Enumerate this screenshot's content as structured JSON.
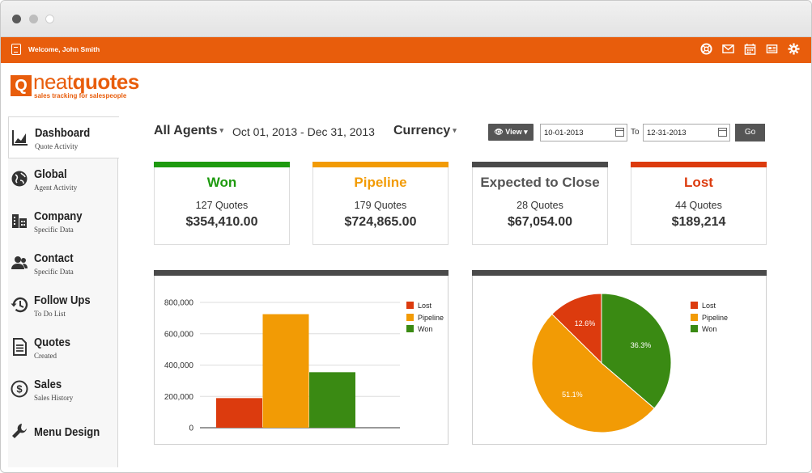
{
  "app": {
    "welcome_text": "Welcome, John Smith",
    "brand_part1": "neat",
    "brand_part2": "quotes",
    "logo_letter": "Q",
    "tagline": "sales tracking for salespeople",
    "accent_color": "#e85d0c",
    "toolbar_icons": [
      "support-icon",
      "mail-icon",
      "calendar-icon",
      "newspaper-icon",
      "settings-icon"
    ]
  },
  "sidebar": {
    "items": [
      {
        "title": "Dashboard",
        "subtitle": "Quote Activity",
        "icon": "chart-icon",
        "active": true
      },
      {
        "title": "Global",
        "subtitle": "Agent Activity",
        "icon": "globe-icon"
      },
      {
        "title": "Company",
        "subtitle": "Specific Data",
        "icon": "building-icon"
      },
      {
        "title": "Contact",
        "subtitle": "Specific Data",
        "icon": "people-icon"
      },
      {
        "title": "Follow Ups",
        "subtitle": "To Do List",
        "icon": "history-icon"
      },
      {
        "title": "Quotes",
        "subtitle": "Created",
        "icon": "document-icon"
      },
      {
        "title": "Sales",
        "subtitle": "Sales History",
        "icon": "dollar-icon"
      },
      {
        "title": "Menu Design",
        "subtitle": "",
        "icon": "wrench-icon"
      }
    ]
  },
  "filters": {
    "agents_label": "All Agents",
    "date_range": "Oct 01, 2013 - Dec 31, 2013",
    "currency_label": "Currency",
    "view_label": "View",
    "from_date": "10-01-2013",
    "to_label": "To",
    "to_date": "12-31-2013",
    "go_label": "Go"
  },
  "cards": [
    {
      "title": "Won",
      "count": "127 Quotes",
      "amount": "$354,410.00",
      "color": "#1e9a0f"
    },
    {
      "title": "Pipeline",
      "count": "179 Quotes",
      "amount": "$724,865.00",
      "color": "#f29b05"
    },
    {
      "title": "Expected to Close",
      "count": "28 Quotes",
      "amount": "$67,054.00",
      "color": "#4a4a4a"
    },
    {
      "title": "Lost",
      "count": "44 Quotes",
      "amount": "$189,214",
      "color": "#dc3b0e"
    }
  ],
  "chart_data": [
    {
      "type": "bar",
      "categories": [
        "Lost",
        "Pipeline",
        "Won"
      ],
      "values": [
        189214,
        724865,
        354410
      ],
      "colors": [
        "#dc3b0e",
        "#f29b05",
        "#3a8a13"
      ],
      "yticks": [
        "0",
        "200,000",
        "400,000",
        "600,000",
        "800,000"
      ],
      "ylim": [
        0,
        800000
      ],
      "legend": [
        "Lost",
        "Pipeline",
        "Won"
      ],
      "legend_position": "right",
      "grid": true
    },
    {
      "type": "pie",
      "labels": [
        "Lost",
        "Pipeline",
        "Won"
      ],
      "values": [
        12.6,
        51.1,
        36.3
      ],
      "data_labels": [
        "12.6%",
        "51.1%",
        "36.3%"
      ],
      "colors": [
        "#dc3b0e",
        "#f29b05",
        "#3a8a13"
      ],
      "legend": [
        "Lost",
        "Pipeline",
        "Won"
      ],
      "legend_position": "right"
    }
  ]
}
